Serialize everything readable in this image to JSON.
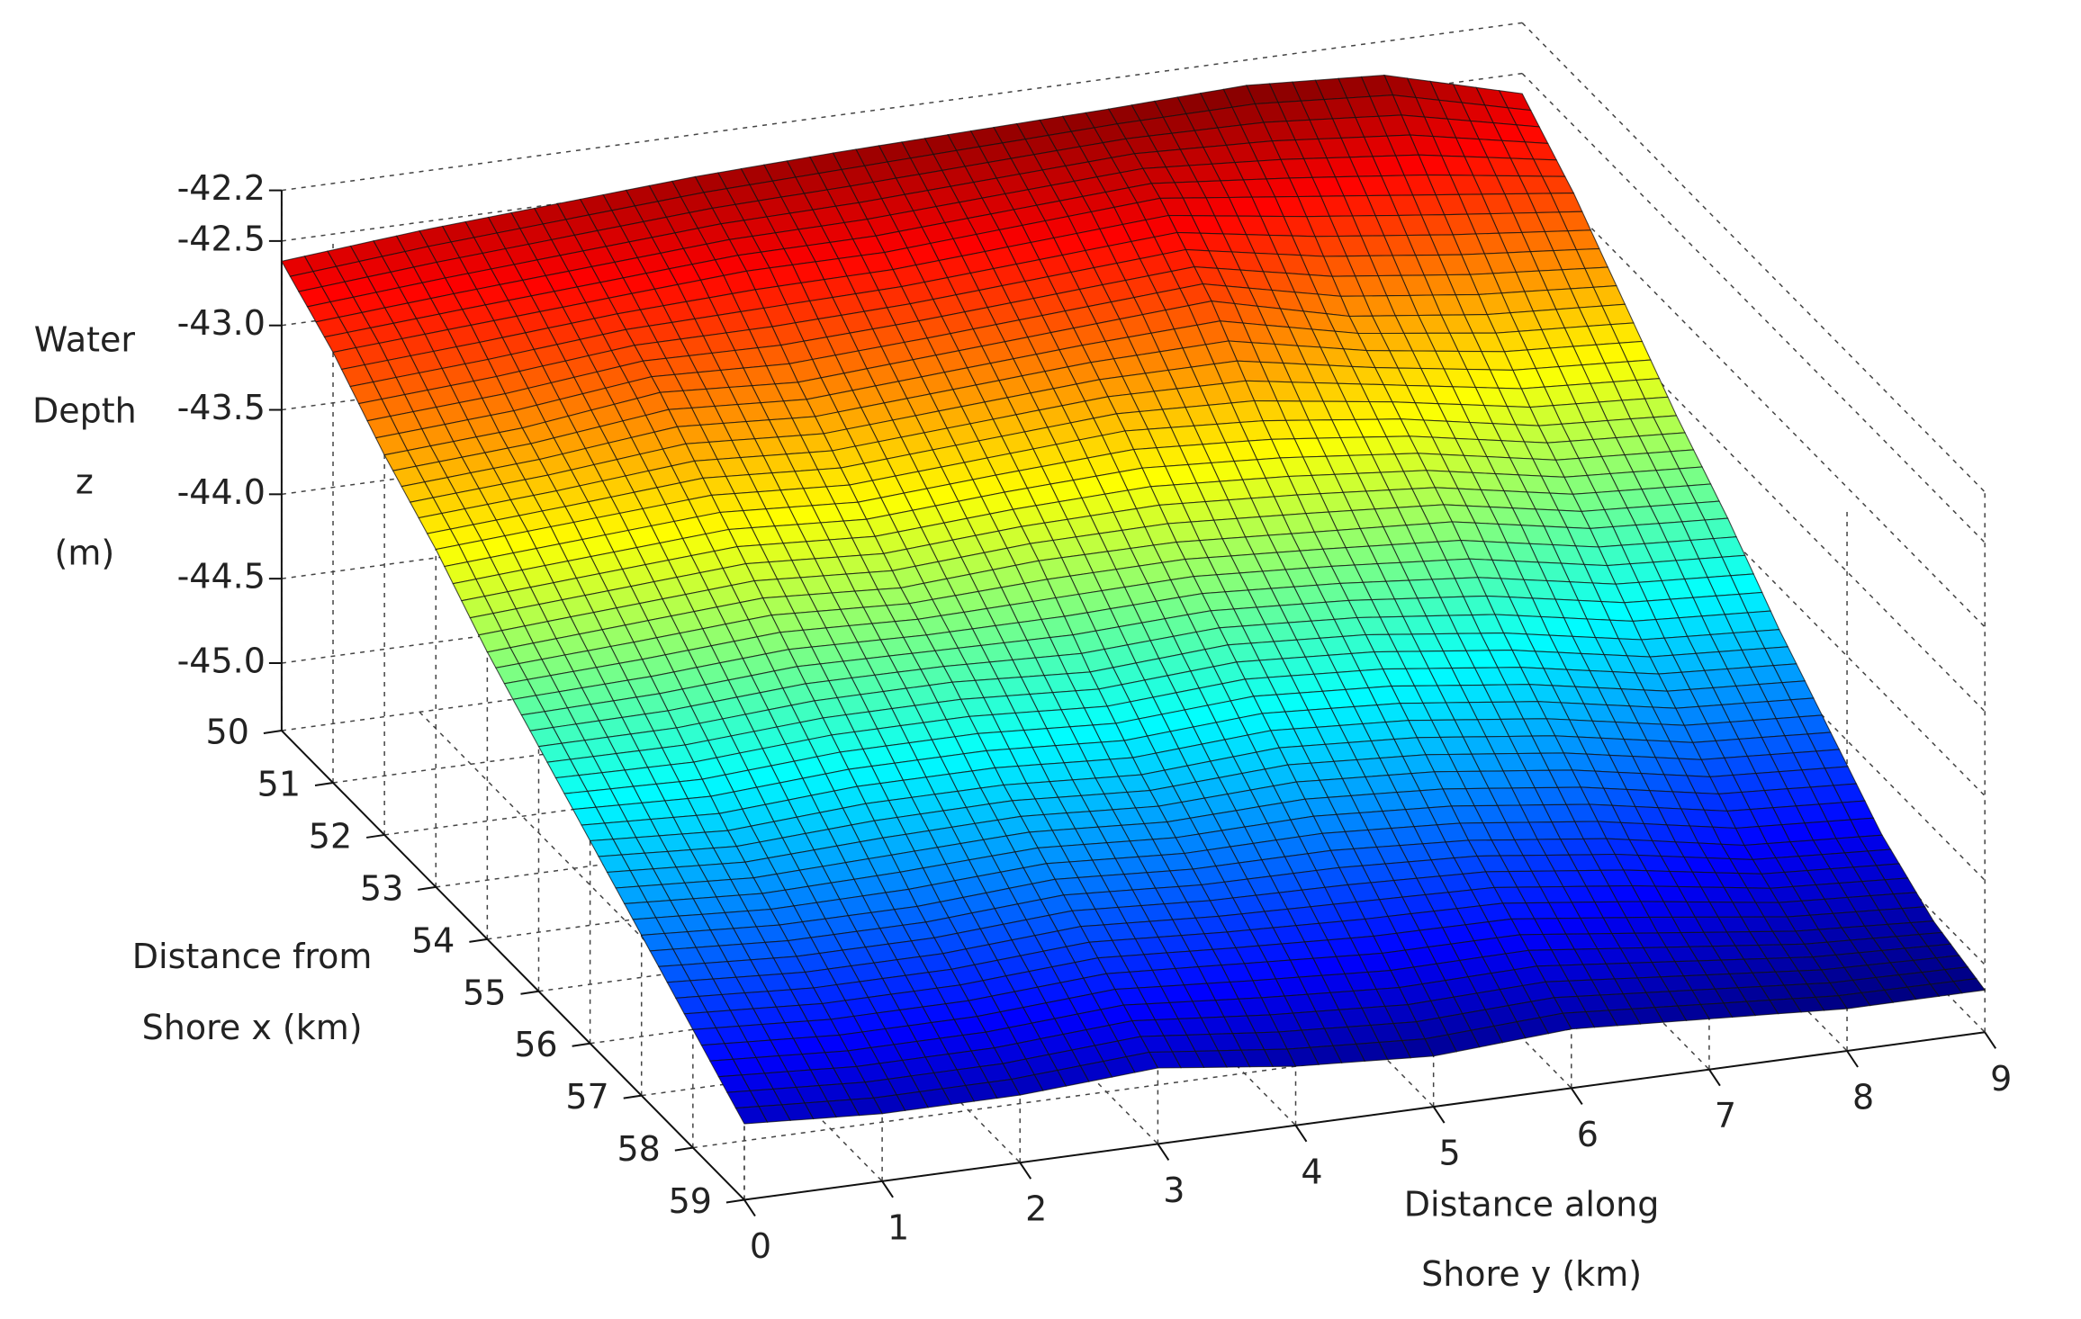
{
  "chart_data": {
    "type": "surface",
    "colormap": "jet",
    "grid": true,
    "zlabel": [
      "Water",
      "Depth",
      "z",
      "(m)"
    ],
    "xlabel": [
      "Distance from",
      "Shore x (km)"
    ],
    "ylabel": [
      "Distance along",
      "Shore y (km)"
    ],
    "x": [
      50,
      51,
      52,
      53,
      54,
      55,
      56,
      57,
      58,
      59
    ],
    "y": [
      0,
      1,
      2,
      3,
      4,
      5,
      6,
      7,
      8,
      9
    ],
    "z": [
      [
        -42.62,
        -42.55,
        -42.5,
        -42.45,
        -42.42,
        -42.4,
        -42.38,
        -42.35,
        -42.4,
        -42.62
      ],
      [
        -42.85,
        -42.8,
        -42.75,
        -42.7,
        -42.7,
        -42.65,
        -42.6,
        -42.7,
        -42.8,
        -42.9
      ],
      [
        -43.15,
        -43.1,
        -43.0,
        -43.05,
        -43.0,
        -42.95,
        -42.9,
        -43.1,
        -43.2,
        -43.25
      ],
      [
        -43.4,
        -43.35,
        -43.3,
        -43.35,
        -43.3,
        -43.25,
        -43.3,
        -43.4,
        -43.55,
        -43.6
      ],
      [
        -43.7,
        -43.65,
        -43.6,
        -43.65,
        -43.6,
        -43.6,
        -43.65,
        -43.7,
        -43.85,
        -43.9
      ],
      [
        -43.95,
        -43.95,
        -43.9,
        -43.9,
        -43.95,
        -43.9,
        -43.95,
        -44.05,
        -44.2,
        -44.25
      ],
      [
        -44.2,
        -44.25,
        -44.2,
        -44.2,
        -44.25,
        -44.2,
        -44.25,
        -44.35,
        -44.5,
        -44.55
      ],
      [
        -44.45,
        -44.5,
        -44.5,
        -44.45,
        -44.5,
        -44.5,
        -44.55,
        -44.65,
        -44.8,
        -44.85
      ],
      [
        -44.7,
        -44.75,
        -44.75,
        -44.7,
        -44.75,
        -44.8,
        -44.8,
        -44.9,
        -45.0,
        -45.05
      ],
      [
        -44.95,
        -45.0,
        -45.0,
        -44.95,
        -45.05,
        -45.1,
        -45.05,
        -45.1,
        -45.15,
        -45.15
      ]
    ],
    "xlim": [
      50,
      59
    ],
    "ylim": [
      0,
      9
    ],
    "zlim": [
      -45.4,
      -42.2
    ],
    "xticks": [
      50,
      51,
      52,
      53,
      54,
      55,
      56,
      57,
      58,
      59
    ],
    "yticks": [
      0,
      1,
      2,
      3,
      4,
      5,
      6,
      7,
      8,
      9
    ],
    "zticks": [
      -42.2,
      -42.5,
      {
        "value": -43,
        "label": "-43.0"
      },
      -43.5,
      {
        "value": -44,
        "label": "-44.0"
      },
      -44.5,
      {
        "value": -45,
        "label": "-45.0"
      }
    ]
  }
}
